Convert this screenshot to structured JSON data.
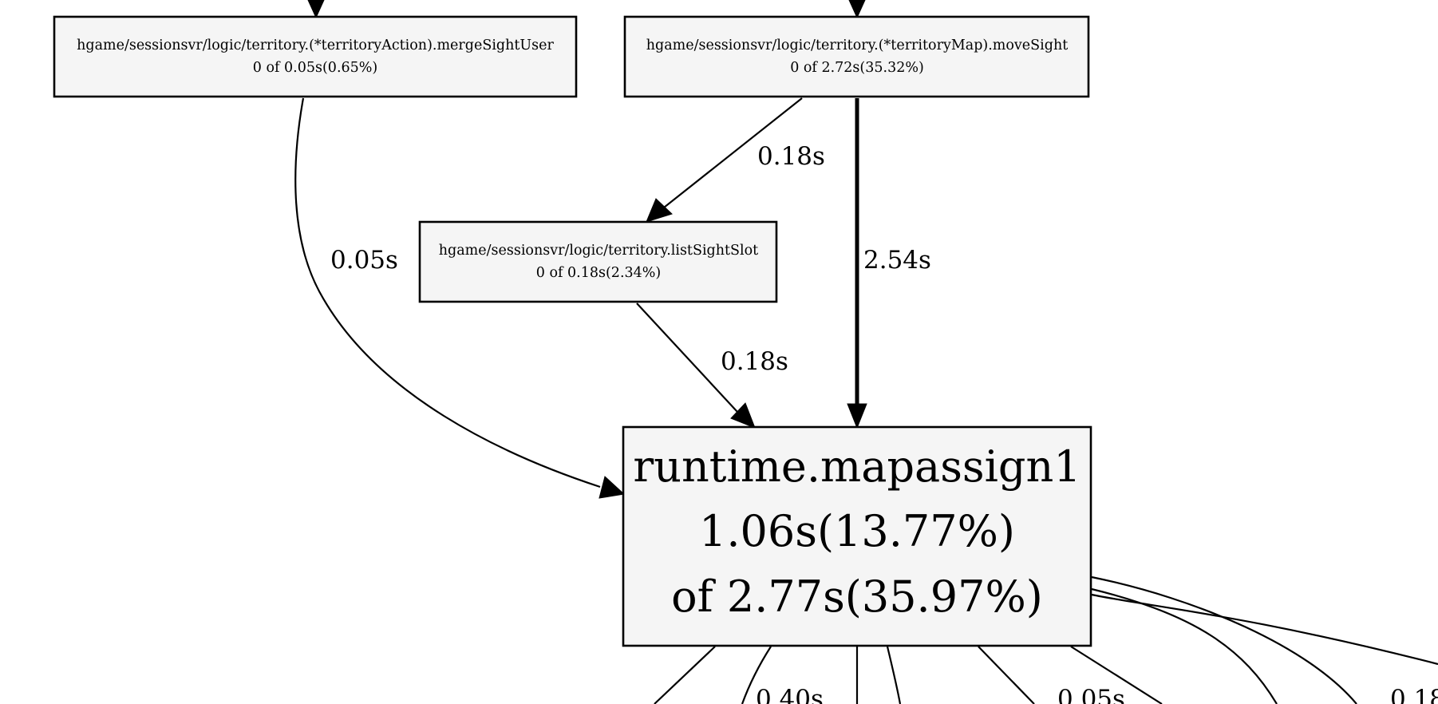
{
  "nodes": {
    "merge_sight_user": {
      "name": "hgame/sessionsvr/logic/territory.(*territoryAction).mergeSightUser",
      "stats": "0 of 0.05s(0.65%)"
    },
    "move_sight": {
      "name": "hgame/sessionsvr/logic/territory.(*territoryMap).moveSight",
      "stats": "0 of 2.72s(35.32%)"
    },
    "list_sight_slot": {
      "name": "hgame/sessionsvr/logic/territory.listSightSlot",
      "stats": "0 of 0.18s(2.34%)"
    },
    "mapassign": {
      "name": "runtime.mapassign1",
      "flat": "1.06s(13.77%)",
      "cum": "of 2.77s(35.97%)"
    }
  },
  "edges": {
    "move_to_list": "0.18s",
    "merge_to_mapassign": "0.05s",
    "move_to_mapassign": "2.54s",
    "list_to_mapassign": "0.18s",
    "out_a": "0.40s",
    "out_b": "0.05s",
    "out_c": "0.18"
  }
}
